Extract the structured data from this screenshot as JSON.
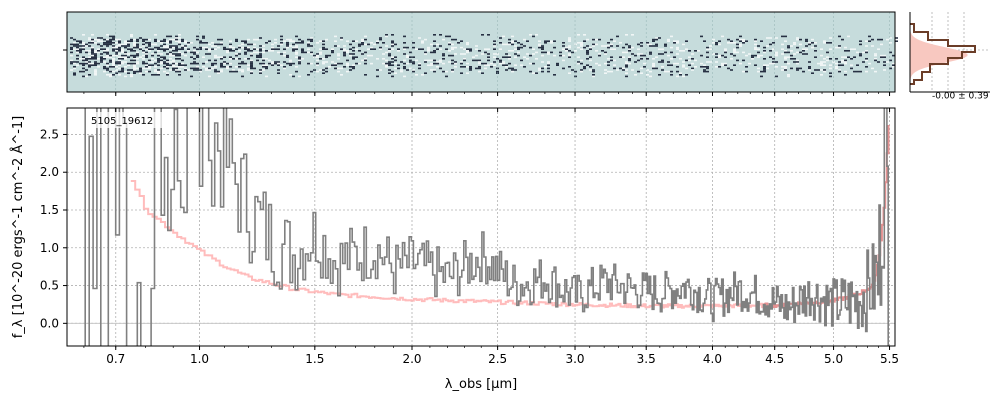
{
  "colors": {
    "background": "#ffffff",
    "spectrum": "#808080",
    "error": "#ffb0b0",
    "error_model": "#d07070",
    "image_bg": "#c6dcdc",
    "image_dark": "#0a1228",
    "hist_fill": "#f8c8c0",
    "hist_line": "#6b3d28",
    "grid": "#b0b0b0",
    "zero_line": "#c8c8c8"
  },
  "panels": {
    "spectrum2d": {
      "name": "2D spectrum cutout"
    },
    "histogram": {
      "label": "-0.00 ± 0.39"
    }
  },
  "chart_data": {
    "type": "line",
    "annotation": "5105_19612",
    "xlabel": "λ_obs [μm]",
    "ylabel": "f_λ [10^-20 ergs^-1 cm^-2 Å^-1]",
    "xlim": [
      0.55,
      5.55
    ],
    "ylim": [
      -0.3,
      2.85
    ],
    "x_scale": "warped (approx. λ^0.5)",
    "xticks": [
      0.7,
      1.0,
      1.5,
      2.0,
      2.5,
      3.0,
      3.5,
      4.0,
      4.5,
      5.0,
      5.5
    ],
    "xtick_labels": [
      "0.7",
      "1.0",
      "1.5",
      "2.0",
      "2.5",
      "3.0",
      "3.5",
      "4.0",
      "4.5",
      "5.0",
      "5.5"
    ],
    "yticks": [
      0.0,
      0.5,
      1.0,
      1.5,
      2.0,
      2.5
    ],
    "ytick_labels": [
      "0.0",
      "0.5",
      "1.0",
      "1.5",
      "2.0",
      "2.5"
    ],
    "grid": true,
    "series": [
      {
        "role": "flux",
        "style": "step",
        "x": [
          0.6,
          0.65,
          0.7,
          0.75,
          0.8,
          0.85,
          0.9,
          0.95,
          1.0,
          1.1,
          1.2,
          1.3,
          1.4,
          1.5,
          1.6,
          1.7,
          1.8,
          1.9,
          2.0,
          2.2,
          2.4,
          2.6,
          2.8,
          3.0,
          3.2,
          3.4,
          3.6,
          3.8,
          4.0,
          4.2,
          4.4,
          4.6,
          4.8,
          5.0,
          5.2,
          5.4,
          5.45,
          5.5
        ],
        "y": [
          2.9,
          0.3,
          2.9,
          1.9,
          0.2,
          1.7,
          1.8,
          2.6,
          2.9,
          2.2,
          1.5,
          1.1,
          0.9,
          1.2,
          0.8,
          0.9,
          1.0,
          0.7,
          0.8,
          0.6,
          0.9,
          0.5,
          0.6,
          0.35,
          0.55,
          0.45,
          0.4,
          0.5,
          0.3,
          0.45,
          0.35,
          0.2,
          0.4,
          0.25,
          0.3,
          0.6,
          2.9,
          -0.3
        ]
      },
      {
        "role": "uncertainty",
        "style": "step",
        "x": [
          0.75,
          0.8,
          0.9,
          1.0,
          1.1,
          1.2,
          1.4,
          1.6,
          1.8,
          2.0,
          2.5,
          3.0,
          3.5,
          4.0,
          4.5,
          5.0,
          5.2,
          5.35,
          5.4,
          5.45,
          5.5
        ],
        "y": [
          1.9,
          1.5,
          1.2,
          0.95,
          0.75,
          0.6,
          0.45,
          0.38,
          0.35,
          0.32,
          0.28,
          0.25,
          0.23,
          0.23,
          0.24,
          0.3,
          0.38,
          0.5,
          0.9,
          1.6,
          2.9
        ]
      }
    ]
  }
}
